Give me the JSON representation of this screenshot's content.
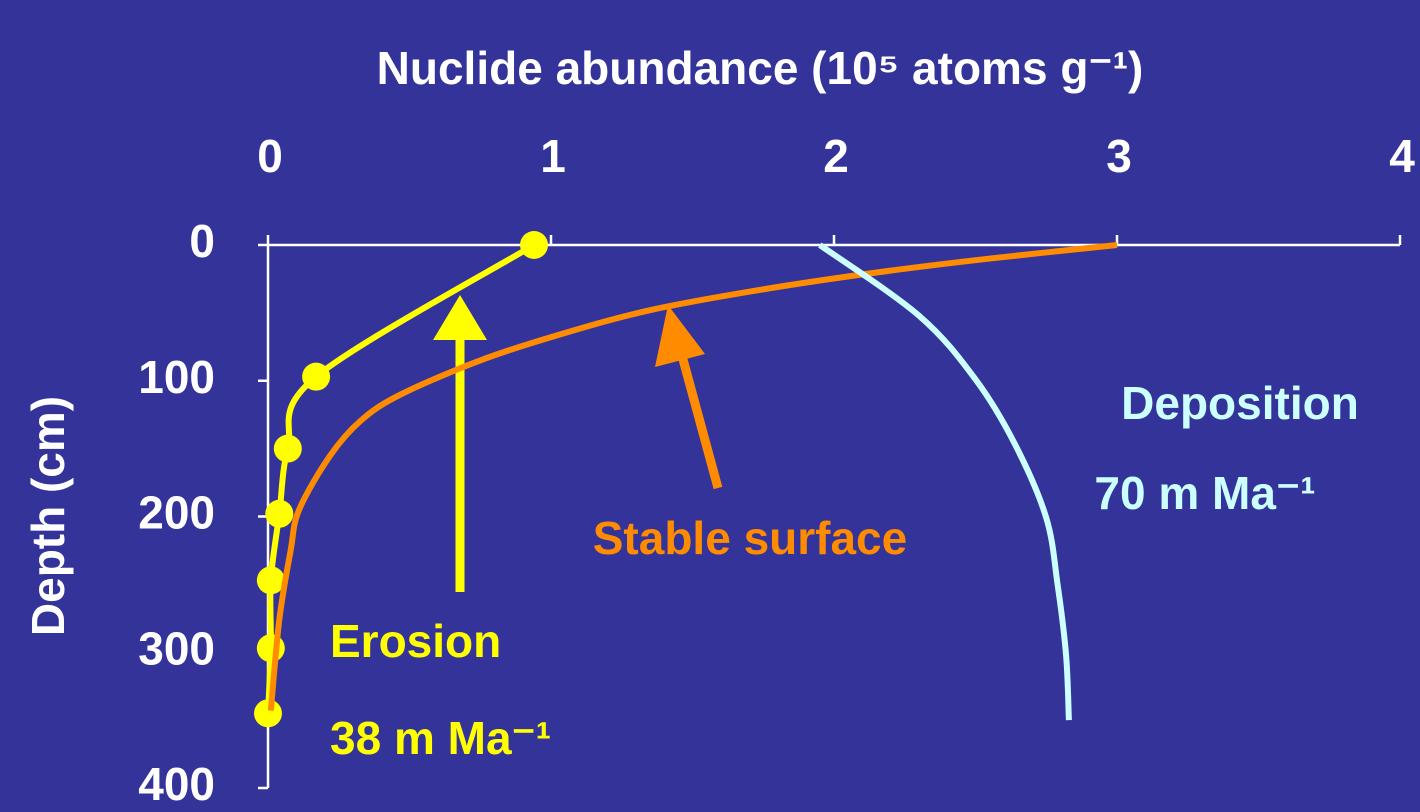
{
  "chart_data": {
    "type": "line",
    "title": "Nuclide abundance (10⁵ atoms g⁻¹)",
    "ylabel": "Depth (cm)",
    "xlim": [
      0,
      4
    ],
    "xticks": [
      0,
      1,
      2,
      3,
      4
    ],
    "ylim": [
      0,
      400
    ],
    "yticks": [
      0,
      100,
      200,
      300,
      400
    ],
    "y_inverted": true,
    "x_axis_position": "top",
    "background": "#333399",
    "series": [
      {
        "name": "Erosion",
        "rate": "38 m Ma⁻¹",
        "color": "#ffff00",
        "marker": true,
        "x": [
          0.94,
          0.17,
          0.07,
          0.04,
          0.01,
          0.01,
          0.0
        ],
        "values": [
          0,
          97,
          150,
          198,
          247,
          297,
          345
        ]
      },
      {
        "name": "Stable surface",
        "color": "#ff8c00",
        "marker": false,
        "x": [
          3.0,
          2.55,
          2.16,
          1.74,
          1.35,
          1.03,
          0.75,
          0.47,
          0.33,
          0.22,
          0.11,
          0.08,
          0.04,
          0.01
        ],
        "values": [
          0,
          10,
          20,
          33,
          48,
          66,
          85,
          110,
          129,
          155,
          195,
          225,
          276,
          343
        ]
      },
      {
        "name": "Deposition",
        "rate": "70 m Ma⁻¹",
        "color": "#ccffff",
        "marker": false,
        "x": [
          1.95,
          2.3,
          2.5,
          2.64,
          2.75,
          2.79,
          2.82,
          2.83
        ],
        "values": [
          0,
          52,
          99,
          147,
          201,
          250,
          302,
          350
        ]
      }
    ]
  }
}
